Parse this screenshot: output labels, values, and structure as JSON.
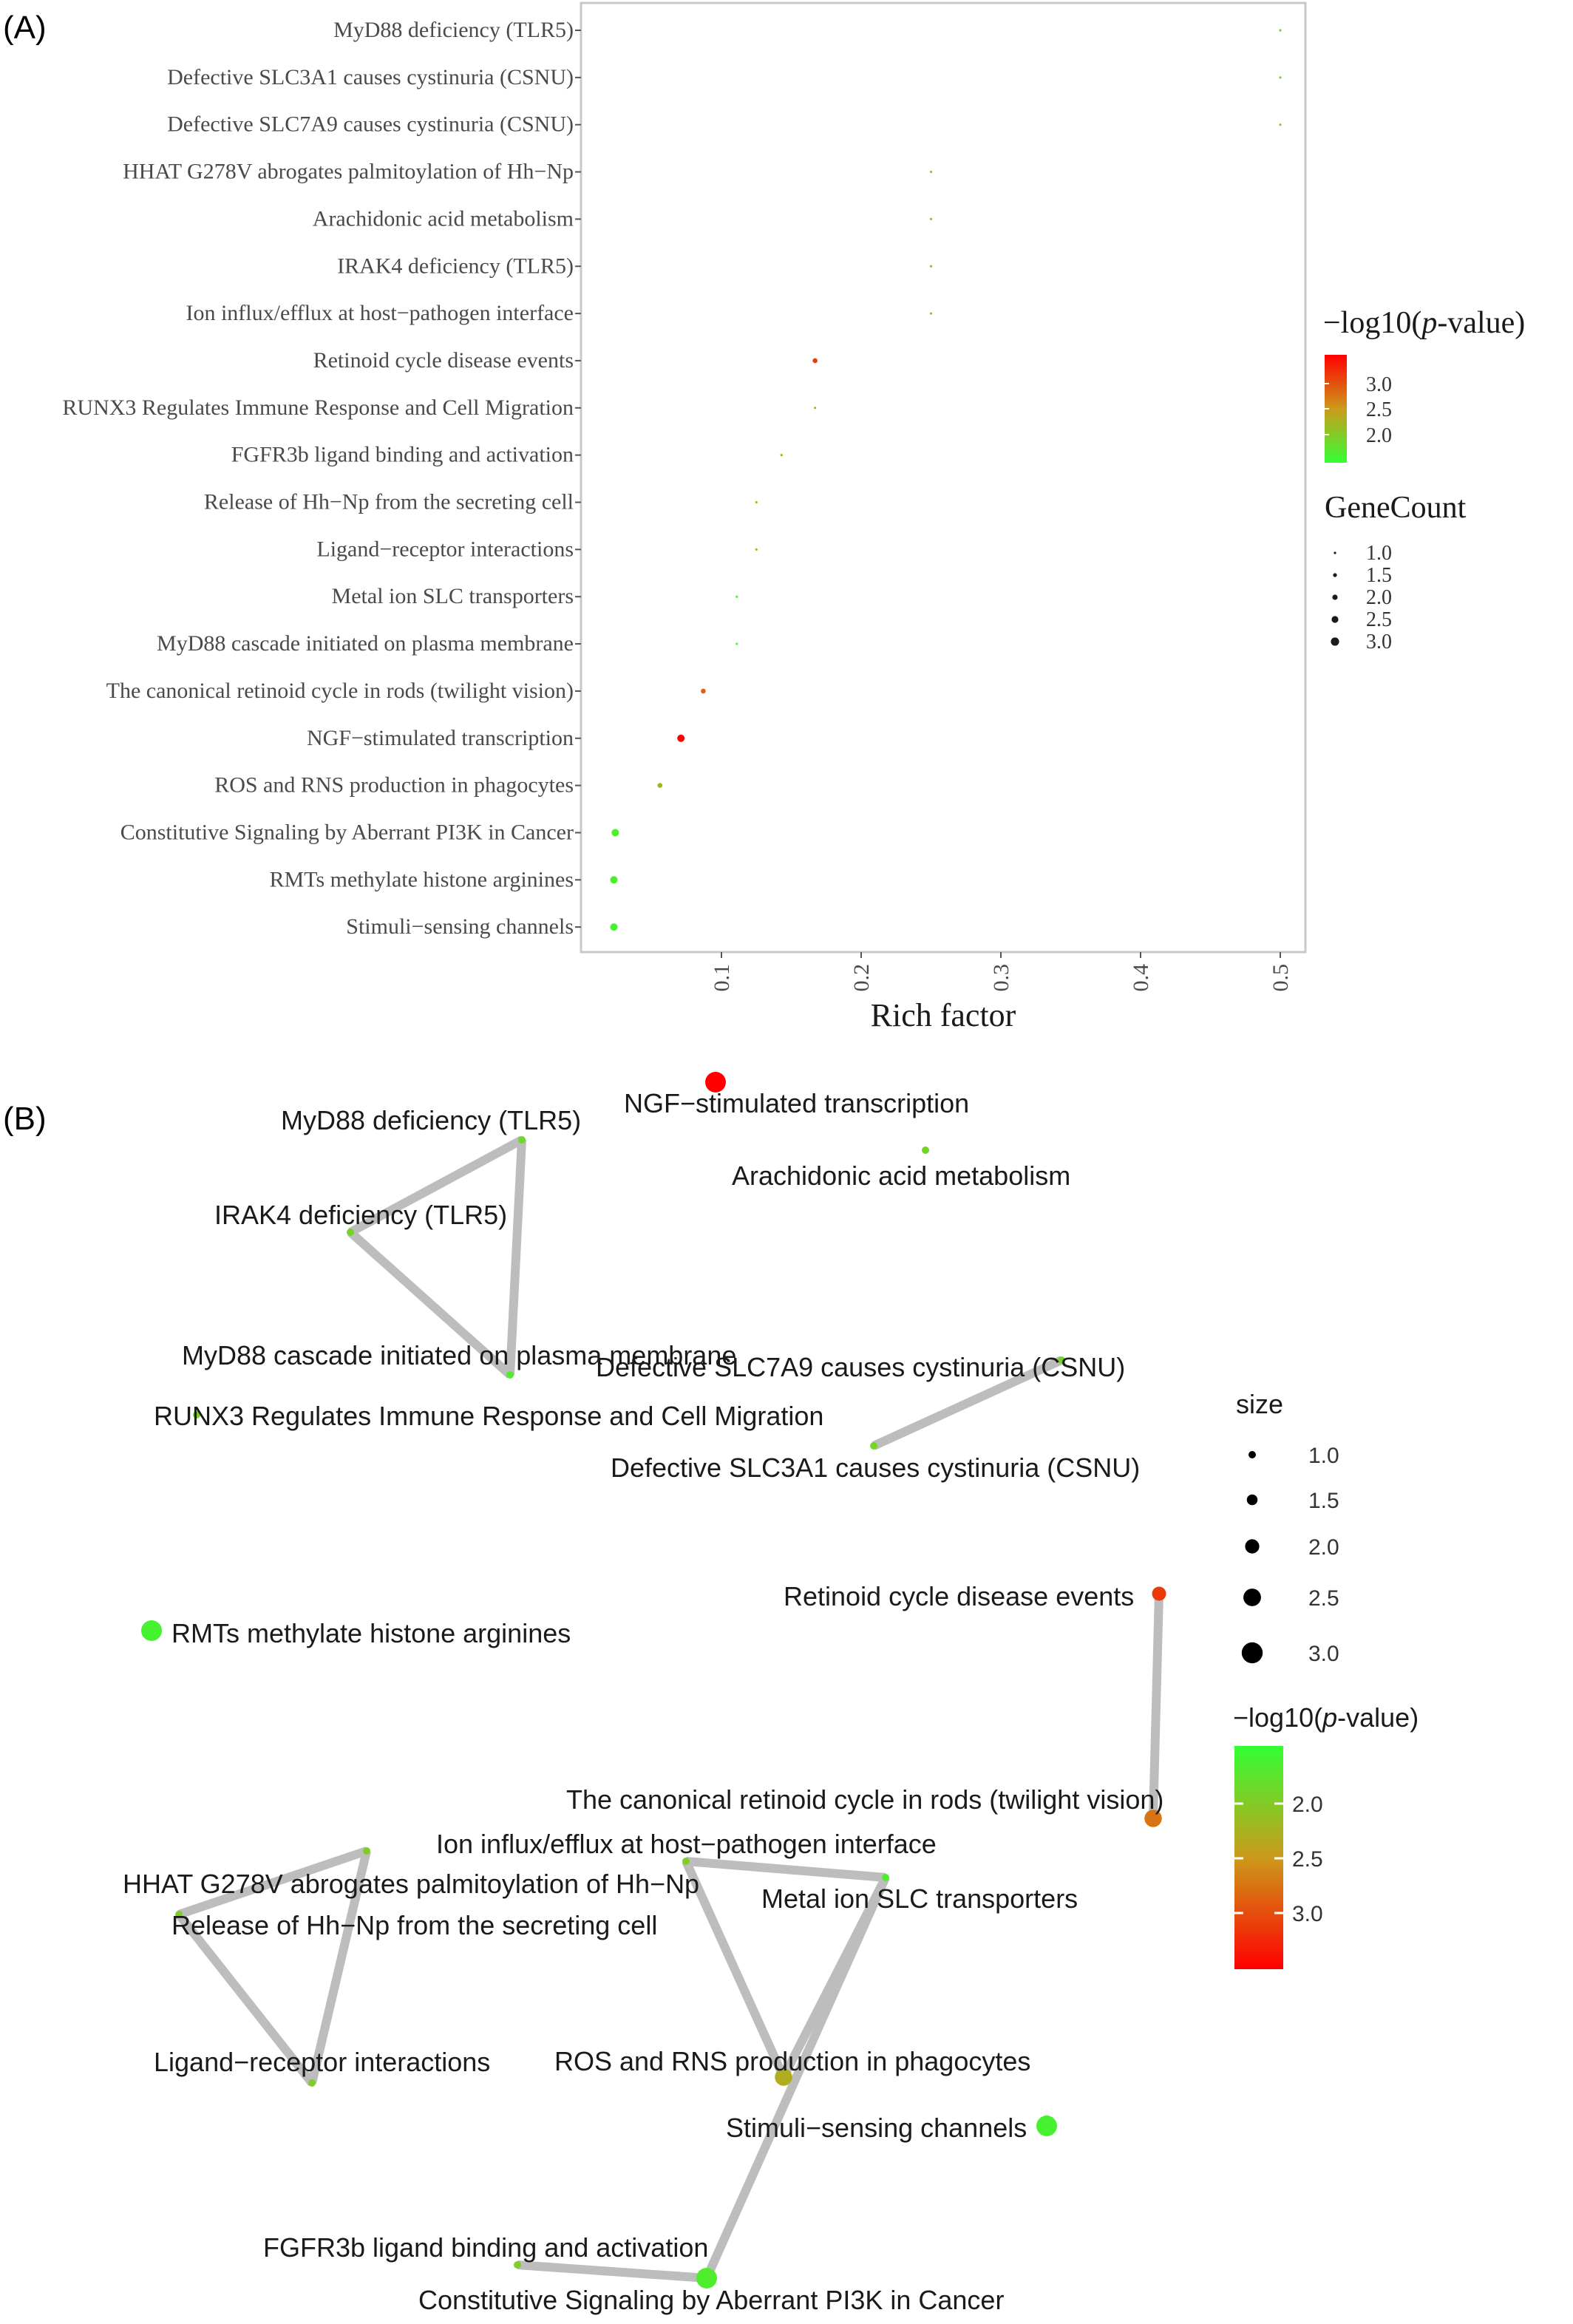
{
  "panel_a_label": "(A)",
  "panel_b_label": "(B)",
  "chart_data": [
    {
      "type": "scatter",
      "panel": "A",
      "xlabel": "Rich factor",
      "ylabel": "",
      "xlim": [
        0.0,
        0.52
      ],
      "xticks": [
        "0.1",
        "0.2",
        "0.3",
        "0.4",
        "0.5"
      ],
      "grid": false,
      "legend_position": "right",
      "categories": [
        "MyD88 deficiency (TLR5)",
        "Defective SLC3A1 causes cystinuria (CSNU)",
        "Defective SLC7A9 causes cystinuria (CSNU)",
        "HHAT G278V abrogates palmitoylation of Hh−Np",
        "Arachidonic acid metabolism",
        "IRAK4 deficiency (TLR5)",
        "Ion influx/efflux at host−pathogen interface",
        "Retinoid cycle disease events",
        "RUNX3 Regulates Immune Response and Cell Migration",
        "FGFR3b ligand binding and activation",
        "Release of Hh−Np from the secreting cell",
        "Ligand−receptor interactions",
        "Metal ion SLC transporters",
        "MyD88 cascade initiated on plasma membrane",
        "The canonical retinoid cycle in rods (twilight vision)",
        "NGF−stimulated transcription",
        "ROS and RNS production in phagocytes",
        "Constitutive Signaling by Aberrant PI3K in Cancer",
        "RMTs methylate histone arginines",
        "Stimuli−sensing channels"
      ],
      "rich_factor": [
        0.5,
        0.5,
        0.5,
        0.25,
        0.25,
        0.25,
        0.25,
        0.167,
        0.167,
        0.143,
        0.125,
        0.125,
        0.111,
        0.111,
        0.087,
        0.071,
        0.056,
        0.024,
        0.023,
        0.023
      ],
      "neg_log10_p": [
        1.95,
        1.95,
        1.95,
        2.05,
        2.05,
        2.05,
        2.05,
        2.9,
        2.2,
        2.2,
        2.1,
        2.1,
        1.6,
        1.6,
        2.7,
        3.3,
        2.2,
        1.75,
        1.75,
        1.7
      ],
      "gene_count": [
        1,
        1,
        1,
        1,
        1,
        1,
        1,
        2,
        1,
        1,
        1,
        1,
        1,
        1,
        2,
        3,
        2,
        3,
        3,
        3
      ],
      "legend": {
        "color_title_prefix": "−log10(",
        "color_title_italic": "p",
        "color_title_suffix": "-value)",
        "color_ticks": [
          "3.0",
          "2.5",
          "2.0"
        ],
        "color_colors": [
          "#ff0000",
          "#33ff33"
        ],
        "size_title": "GeneCount",
        "size_ticks": [
          "1.0",
          "1.5",
          "2.0",
          "2.5",
          "3.0"
        ]
      }
    },
    {
      "type": "network",
      "panel": "B",
      "nodes": [
        {
          "label": "NGF−stimulated transcription",
          "size": 3.0,
          "neg_log10_p": 3.3
        },
        {
          "label": "MyD88 deficiency (TLR5)",
          "size": 1.0,
          "neg_log10_p": 1.9
        },
        {
          "label": "Arachidonic acid metabolism",
          "size": 1.0,
          "neg_log10_p": 1.95
        },
        {
          "label": "IRAK4 deficiency (TLR5)",
          "size": 1.0,
          "neg_log10_p": 1.95
        },
        {
          "label": "MyD88 cascade initiated on plasma membrane",
          "size": 1.0,
          "neg_log10_p": 1.75
        },
        {
          "label": "Defective SLC7A9 causes cystinuria (CSNU)",
          "size": 1.0,
          "neg_log10_p": 1.95
        },
        {
          "label": "RUNX3 Regulates Immune Response and Cell Migration",
          "size": 1.0,
          "neg_log10_p": 2.0
        },
        {
          "label": "Defective SLC3A1 causes cystinuria (CSNU)",
          "size": 1.0,
          "neg_log10_p": 1.95
        },
        {
          "label": "Retinoid cycle disease events",
          "size": 2.0,
          "neg_log10_p": 2.9
        },
        {
          "label": "RMTs methylate histone arginines",
          "size": 3.0,
          "neg_log10_p": 1.7
        },
        {
          "label": "The canonical retinoid cycle in rods (twilight vision)",
          "size": 2.5,
          "neg_log10_p": 2.6
        },
        {
          "label": "Ion influx/efflux at host−pathogen interface",
          "size": 1.0,
          "neg_log10_p": 2.0
        },
        {
          "label": "HHAT G278V abrogates palmitoylation of Hh−Np",
          "size": 1.0,
          "neg_log10_p": 2.0
        },
        {
          "label": "Metal ion SLC transporters",
          "size": 1.0,
          "neg_log10_p": 1.75
        },
        {
          "label": "Release of Hh−Np from the secreting cell",
          "size": 1.0,
          "neg_log10_p": 2.0
        },
        {
          "label": "Ligand−receptor interactions",
          "size": 1.0,
          "neg_log10_p": 2.0
        },
        {
          "label": "ROS and RNS production in phagocytes",
          "size": 2.5,
          "neg_log10_p": 2.25
        },
        {
          "label": "Stimuli−sensing channels",
          "size": 3.0,
          "neg_log10_p": 1.7
        },
        {
          "label": "FGFR3b ligand binding and activation",
          "size": 1.0,
          "neg_log10_p": 2.0
        },
        {
          "label": "Constitutive Signaling by Aberrant PI3K in Cancer",
          "size": 3.0,
          "neg_log10_p": 1.75
        }
      ],
      "edges": [
        [
          "MyD88 deficiency (TLR5)",
          "IRAK4 deficiency (TLR5)"
        ],
        [
          "MyD88 deficiency (TLR5)",
          "MyD88 cascade initiated on plasma membrane"
        ],
        [
          "IRAK4 deficiency (TLR5)",
          "MyD88 cascade initiated on plasma membrane"
        ],
        [
          "Defective SLC7A9 causes cystinuria (CSNU)",
          "Defective SLC3A1 causes cystinuria (CSNU)"
        ],
        [
          "Retinoid cycle disease events",
          "The canonical retinoid cycle in rods (twilight vision)"
        ],
        [
          "HHAT G278V abrogates palmitoylation of Hh−Np",
          "Release of Hh−Np from the secreting cell"
        ],
        [
          "HHAT G278V abrogates palmitoylation of Hh−Np",
          "Ligand−receptor interactions"
        ],
        [
          "Release of Hh−Np from the secreting cell",
          "Ligand−receptor interactions"
        ],
        [
          "Ion influx/efflux at host−pathogen interface",
          "Metal ion SLC transporters"
        ],
        [
          "Ion influx/efflux at host−pathogen interface",
          "ROS and RNS production in phagocytes"
        ],
        [
          "Metal ion SLC transporters",
          "ROS and RNS production in phagocytes"
        ],
        [
          "Metal ion SLC transporters",
          "Constitutive Signaling by Aberrant PI3K in Cancer"
        ],
        [
          "FGFR3b ligand binding and activation",
          "Constitutive Signaling by Aberrant PI3K in Cancer"
        ]
      ],
      "legend": {
        "size_title": "size",
        "size_ticks": [
          "1.0",
          "1.5",
          "2.0",
          "2.5",
          "3.0"
        ],
        "color_title_prefix": "−log10(",
        "color_title_italic": "p",
        "color_title_suffix": "-value)",
        "color_ticks": [
          "2.0",
          "2.5",
          "3.0"
        ],
        "color_colors": [
          "#33ff33",
          "#ff0000"
        ]
      }
    }
  ]
}
